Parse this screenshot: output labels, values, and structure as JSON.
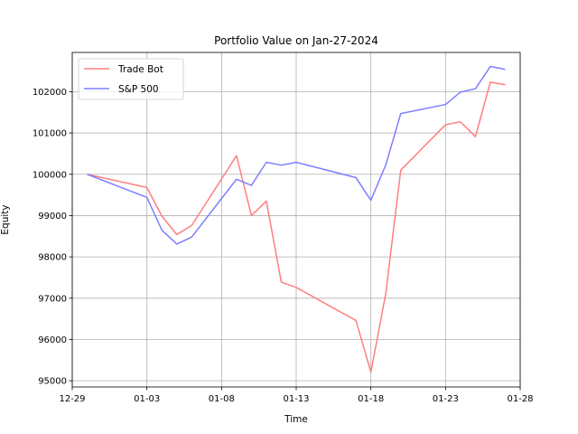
{
  "chart_data": {
    "type": "line",
    "title": "Portfolio Value on Jan-27-2024",
    "xlabel": "Time",
    "ylabel": "Equity",
    "x_type": "date",
    "xlim": [
      "2023-12-29",
      "2024-01-28"
    ],
    "ylim": [
      94850,
      102950
    ],
    "x_ticks": [
      "2023-12-29",
      "2024-01-03",
      "2024-01-08",
      "2024-01-13",
      "2024-01-18",
      "2024-01-23",
      "2024-01-28"
    ],
    "x_tick_labels": [
      "12-29",
      "01-03",
      "01-08",
      "01-13",
      "01-18",
      "01-23",
      "01-28"
    ],
    "y_ticks": [
      95000,
      96000,
      97000,
      98000,
      99000,
      100000,
      101000,
      102000
    ],
    "y_tick_labels": [
      "95000",
      "96000",
      "97000",
      "98000",
      "99000",
      "100000",
      "101000",
      "102000"
    ],
    "grid": true,
    "legend_position": "top-left",
    "series": [
      {
        "name": "Trade Bot",
        "color": "#ff7f7f",
        "x": [
          "2023-12-30",
          "2024-01-03",
          "2024-01-04",
          "2024-01-05",
          "2024-01-06",
          "2024-01-09",
          "2024-01-10",
          "2024-01-11",
          "2024-01-12",
          "2024-01-13",
          "2024-01-17",
          "2024-01-18",
          "2024-01-19",
          "2024-01-20",
          "2024-01-23",
          "2024-01-24",
          "2024-01-25",
          "2024-01-26",
          "2024-01-27"
        ],
        "values": [
          100000,
          99680,
          98990,
          98540,
          98760,
          100450,
          99000,
          99350,
          97390,
          97260,
          96460,
          95210,
          97120,
          100100,
          101200,
          101270,
          100910,
          102230,
          102170
        ]
      },
      {
        "name": "S&P 500",
        "color": "#7f7fff",
        "x": [
          "2023-12-30",
          "2024-01-03",
          "2024-01-04",
          "2024-01-05",
          "2024-01-06",
          "2024-01-09",
          "2024-01-10",
          "2024-01-11",
          "2024-01-12",
          "2024-01-13",
          "2024-01-17",
          "2024-01-18",
          "2024-01-19",
          "2024-01-20",
          "2024-01-23",
          "2024-01-24",
          "2024-01-25",
          "2024-01-26",
          "2024-01-27"
        ],
        "values": [
          100000,
          99440,
          98650,
          98310,
          98480,
          99880,
          99730,
          100290,
          100220,
          100290,
          99920,
          99370,
          100230,
          101470,
          101690,
          101990,
          102070,
          102610,
          102540
        ]
      }
    ]
  }
}
